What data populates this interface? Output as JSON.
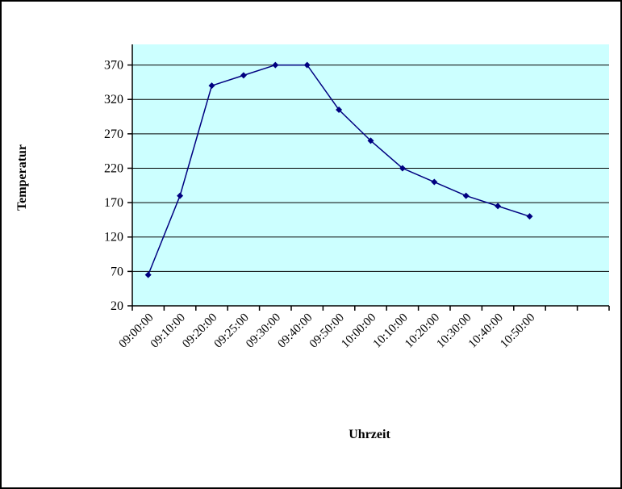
{
  "chart_data": {
    "type": "line",
    "title": "",
    "xlabel": "Uhrzeit",
    "ylabel": "Temperatur",
    "categories": [
      "09:00:00",
      "09:10:00",
      "09:20:00",
      "09:25:00",
      "09:30:00",
      "09:40:00",
      "09:50:00",
      "10:00:00",
      "10:10:00",
      "10:20:00",
      "10:30:00",
      "10:40:00",
      "10:50:00"
    ],
    "values": [
      65,
      180,
      340,
      355,
      370,
      370,
      305,
      260,
      220,
      200,
      180,
      165,
      150
    ],
    "ylim": [
      20,
      400
    ],
    "ytick_step": 50,
    "yticks": [
      370,
      320,
      270,
      220,
      170,
      120,
      70,
      20
    ],
    "extra_empty_slots": 2,
    "grid": "horizontal",
    "legend_position": "none",
    "marker": "diamond",
    "colors": {
      "plot_bg": "#CCFFFF",
      "line": "#000080",
      "marker": "#000080",
      "grid": "#000000",
      "axis": "#000000",
      "text": "#000000",
      "chart_bg": "#FFFFFF",
      "chart_border": "#000000"
    }
  }
}
